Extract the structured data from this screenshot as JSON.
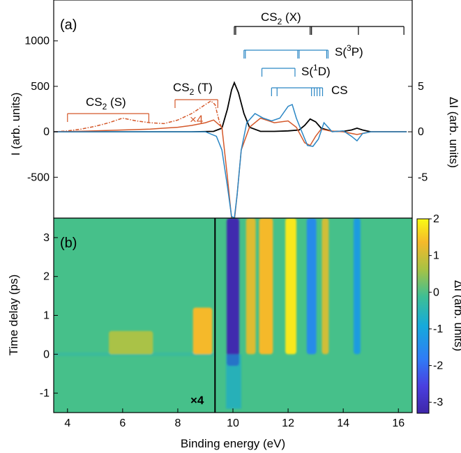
{
  "chart_data": [
    {
      "panel": "(a)",
      "type": "line",
      "xlim": [
        3.5,
        16.5
      ],
      "ylim_left": [
        -950,
        1450
      ],
      "ylim_right": [
        -9.5,
        14.5
      ],
      "ylabel_left": "I (arb. units)",
      "ylabel_right": "ΔI (arb. units)",
      "yticks_left": [
        -500,
        0,
        500,
        1000
      ],
      "yticks_right": [
        -5,
        0,
        5
      ],
      "colors": {
        "black": "#000000",
        "orange": "#d4582a",
        "blue": "#2a86c4"
      },
      "series": [
        {
          "color": "#000000",
          "axis": "left",
          "x": [
            3.5,
            5,
            7,
            8.5,
            9.3,
            9.6,
            9.8,
            9.95,
            10.05,
            10.2,
            10.4,
            10.6,
            11,
            11.5,
            12,
            12.4,
            12.6,
            12.8,
            13,
            13.2,
            13.6,
            14,
            14.3,
            14.5,
            14.7,
            15,
            16.3
          ],
          "y": [
            0,
            0,
            0,
            0,
            5,
            40,
            250,
            460,
            540,
            430,
            200,
            50,
            5,
            5,
            10,
            20,
            70,
            140,
            110,
            40,
            5,
            5,
            20,
            40,
            20,
            0,
            0
          ]
        },
        {
          "color": "#d4582a",
          "axis": "right",
          "x": [
            3.5,
            5,
            6,
            7,
            7.5,
            8,
            8.5,
            9,
            9.3,
            9.6,
            9.8,
            9.95,
            10.05,
            10.15,
            10.3,
            10.6,
            11,
            11.5,
            12,
            12.3,
            12.6,
            12.8,
            13,
            13.2,
            13.5,
            14,
            14.5,
            15,
            16.3
          ],
          "y": [
            0,
            0.1,
            0.2,
            0.3,
            0.4,
            0.5,
            0.7,
            1,
            1.3,
            0.5,
            -5,
            -9.5,
            -9.8,
            -7,
            -2,
            0.5,
            1.5,
            1,
            1.2,
            0.5,
            -1.2,
            -1.5,
            -0.5,
            0.3,
            0.1,
            0,
            -0.3,
            0,
            0
          ]
        },
        {
          "color": "#d4582a",
          "axis": "right",
          "style": "dashdot",
          "scale": "×4",
          "x": [
            3.5,
            4,
            4.5,
            5,
            5.5,
            6,
            6.5,
            7,
            7.5,
            8,
            8.5,
            9,
            9.2,
            9.35,
            9.5,
            9.6
          ],
          "y": [
            0,
            0.1,
            0.3,
            0.6,
            1.0,
            1.5,
            1.2,
            1.0,
            0.9,
            1.3,
            2.0,
            3.0,
            3.4,
            3.0,
            1.2,
            0.3
          ]
        },
        {
          "color": "#2a86c4",
          "axis": "right",
          "x": [
            3.5,
            9,
            9.4,
            9.6,
            9.8,
            9.95,
            10.05,
            10.15,
            10.3,
            10.5,
            10.8,
            11.1,
            11.4,
            11.7,
            12,
            12.15,
            12.3,
            12.5,
            12.7,
            12.9,
            13.1,
            13.3,
            13.6,
            14,
            14.3,
            14.5,
            14.7,
            15,
            16.3
          ],
          "y": [
            0,
            0,
            -0.5,
            -2,
            -6,
            -9.3,
            -9.5,
            -7,
            -2,
            1,
            2,
            1.5,
            1.2,
            1.5,
            2.8,
            3,
            1.5,
            0,
            -1.5,
            -1.6,
            -0.8,
            1,
            0,
            0.1,
            -0.5,
            -1,
            -0.2,
            0,
            0
          ]
        }
      ],
      "annotations": [
        {
          "label": "CS",
          "sub": "2",
          "suffix": " (X)",
          "color": "#000000",
          "xmin": 10.05,
          "xmax": 16.2,
          "ticks": [
            10.05,
            10.1,
            12.8,
            12.85,
            14.55,
            16.2
          ]
        },
        {
          "label": "S(",
          "sup": "3",
          "suffix": "P)",
          "color": "#2a86c4",
          "xmin": 10.4,
          "xmax": 13.45,
          "ticks": [
            10.4,
            10.45,
            12.35,
            12.4,
            13.4,
            13.45
          ]
        },
        {
          "label": "S(",
          "sup": "1",
          "suffix": "D)",
          "color": "#2a86c4",
          "xmin": 11.05,
          "xmax": 12.25,
          "ticks": [
            11.05,
            12.25
          ]
        },
        {
          "label": "CS",
          "color": "#2a86c4",
          "xmin": 11.4,
          "xmax": 13.25,
          "ticks": [
            11.4,
            11.6,
            12.85,
            12.95,
            13.05,
            13.15,
            13.25
          ]
        },
        {
          "label": "CS",
          "sub": "2",
          "suffix": " (S)",
          "color": "#d4582a",
          "xmin": 4.0,
          "xmax": 6.95,
          "ticks": [
            4.0,
            6.95
          ]
        },
        {
          "label": "CS",
          "sub": "2",
          "suffix": " (T)",
          "color": "#d4582a",
          "xmin": 7.9,
          "xmax": 9.45,
          "ticks": [
            7.9,
            9.45
          ]
        }
      ],
      "scale_note": "×4"
    },
    {
      "panel": "(b)",
      "type": "heatmap",
      "xlabel": "Binding energy (eV)",
      "ylabel": "Time delay (ps)",
      "xlim": [
        3.5,
        16.5
      ],
      "ylim": [
        -1.5,
        3.5
      ],
      "xticks": [
        4,
        6,
        8,
        10,
        12,
        14,
        16
      ],
      "yticks": [
        -1,
        0,
        1,
        2,
        3
      ],
      "divider_x": 9.35,
      "scale_note": "×4",
      "colorbar": {
        "label": "ΔI (arb. units)",
        "range": [
          -3.3,
          2
        ],
        "ticks": [
          -3,
          -2,
          -1,
          0,
          1,
          2
        ]
      },
      "features": [
        {
          "x_center": 10.0,
          "x_width": 0.45,
          "t_start": -0.3,
          "value": -3.2
        },
        {
          "x_center": 10.65,
          "x_width": 0.35,
          "t_start": 0,
          "value": 1.1
        },
        {
          "x_center": 11.2,
          "x_width": 0.5,
          "t_start": 0,
          "value": 1.3
        },
        {
          "x_center": 12.1,
          "x_width": 0.4,
          "t_start": 0,
          "value": 1.8
        },
        {
          "x_center": 12.85,
          "x_width": 0.35,
          "t_start": 0,
          "value": -1.5
        },
        {
          "x_center": 13.35,
          "x_width": 0.25,
          "t_start": 0,
          "value": 1.0
        },
        {
          "x_center": 14.5,
          "x_width": 0.25,
          "t_start": 0,
          "value": -1.2
        },
        {
          "x_center": 8.9,
          "x_width": 0.7,
          "t_start": 0,
          "value": 1.3
        },
        {
          "x_center": 6.3,
          "x_width": 1.6,
          "t_start": 0,
          "value": 0.7
        }
      ]
    }
  ]
}
